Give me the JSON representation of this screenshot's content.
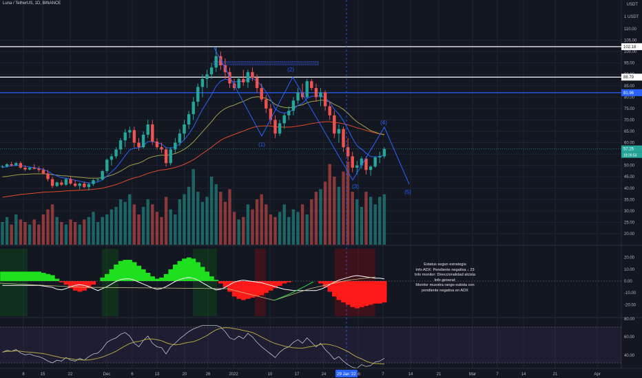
{
  "header": {
    "symbol": "Luna / TetherUS, 1D, BINANCE",
    "currency": "USDT"
  },
  "colors": {
    "background": "#131722",
    "up": "#26a69a",
    "down": "#ef5350",
    "ema_fast": "#2962ff",
    "ema_mid": "#a0a04a",
    "ema_slow": "#e04a2a",
    "level_blue": "#2962ff",
    "wave": "#2962ff"
  },
  "price_scale": {
    "ticks": [
      "105.00",
      "100.00",
      "95.00",
      "90.00",
      "85.00",
      "80.00",
      "75.00",
      "70.00",
      "65.00",
      "60.00",
      "55.00",
      "50.00",
      "45.00",
      "40.00",
      "35.00",
      "30.00",
      "25.00",
      "20.00"
    ],
    "top_label": "1 USDT",
    "top_mid_label": "110.00",
    "tags": [
      {
        "text": "102.18",
        "style": "white"
      },
      {
        "text": "88.79",
        "style": "white"
      },
      {
        "text": "81.96",
        "style": "blue"
      },
      {
        "text": "57.25",
        "style": "teal"
      },
      {
        "text": "19:26:53",
        "style": "teal-small"
      }
    ]
  },
  "adx_scale": {
    "ticks": [
      "20.00",
      "10.00",
      "0.00",
      "-10.00",
      "-20.00"
    ]
  },
  "rsi_scale": {
    "ticks": [
      "80.00",
      "60.00",
      "40.00"
    ]
  },
  "time_axis": {
    "ticks": [
      "8",
      "15",
      "22",
      "Dec",
      "6",
      "13",
      "20",
      "26",
      "2022",
      "10",
      "17",
      "24",
      "eb",
      "7",
      "14",
      "21",
      "Mar",
      "7",
      "14",
      "21",
      "Apr"
    ],
    "cursor_label": "29 Jan '22"
  },
  "wave_labels": [
    "(1)",
    "(2)",
    "(3)",
    "(4)",
    "(5)"
  ],
  "info_box": {
    "lines": [
      "Estatus segun estrategia",
      "Info ADX: Pendiente negativa ↓ 23",
      "Info monitor: Direccionalidad alcista",
      "Info general:",
      "Monitor muestra rango-subida con",
      "pendiente negativa en ADX"
    ]
  },
  "chart_data": {
    "type": "candlestick",
    "title": "Luna / TetherUS, 1D, BINANCE",
    "ylim": [
      18,
      112
    ],
    "levels": [
      102.18,
      88.79,
      81.96
    ],
    "last_price": 57.25,
    "candles": [
      [
        49.5,
        50.2,
        48.8,
        49.6
      ],
      [
        49.6,
        51,
        49,
        50.5
      ],
      [
        50.5,
        51.6,
        49.5,
        50
      ],
      [
        50,
        51.5,
        49.8,
        51
      ],
      [
        51,
        51.8,
        48.5,
        49
      ],
      [
        49,
        50,
        47.5,
        48.2
      ],
      [
        48.2,
        49.5,
        47.8,
        49
      ],
      [
        49,
        50.5,
        48.2,
        48.5
      ],
      [
        48.5,
        49.6,
        47,
        48
      ],
      [
        48,
        49,
        46,
        46.5
      ],
      [
        46.5,
        48,
        43,
        44
      ],
      [
        44,
        45,
        40,
        41
      ],
      [
        41,
        43,
        40.5,
        42.5
      ],
      [
        42.5,
        43.5,
        41,
        41.5
      ],
      [
        41.5,
        44.5,
        41,
        44
      ],
      [
        44,
        45,
        41.5,
        42
      ],
      [
        42,
        43.5,
        40.5,
        41
      ],
      [
        41,
        42.5,
        39.5,
        42
      ],
      [
        42,
        43,
        40,
        40.5
      ],
      [
        40.5,
        42.5,
        39,
        41.8
      ],
      [
        41.8,
        44,
        41,
        43.5
      ],
      [
        43.5,
        44.5,
        42.8,
        43.8
      ],
      [
        43.8,
        48,
        43.5,
        47.5
      ],
      [
        47.5,
        53,
        46.5,
        52.5
      ],
      [
        52.5,
        55,
        50,
        54
      ],
      [
        54,
        58,
        53,
        57
      ],
      [
        57,
        62,
        55,
        61
      ],
      [
        61,
        66,
        58,
        64.5
      ],
      [
        64.5,
        67,
        62,
        65.5
      ],
      [
        65.5,
        67,
        58,
        60
      ],
      [
        60,
        62,
        56.5,
        58
      ],
      [
        58,
        65,
        57.5,
        63.5
      ],
      [
        63.5,
        70,
        62,
        68
      ],
      [
        68,
        70,
        59,
        60.5
      ],
      [
        60.5,
        62,
        57,
        58
      ],
      [
        58,
        60,
        55.5,
        57
      ],
      [
        57,
        58,
        49.5,
        51
      ],
      [
        51,
        58,
        50,
        57
      ],
      [
        57,
        62,
        55.5,
        60
      ],
      [
        60,
        66,
        58.5,
        64
      ],
      [
        64,
        70,
        61.5,
        68
      ],
      [
        68,
        74,
        66,
        72.5
      ],
      [
        72.5,
        80,
        70,
        78
      ],
      [
        78,
        86,
        76,
        84.5
      ],
      [
        84.5,
        90,
        80,
        88
      ],
      [
        88,
        92,
        84,
        90
      ],
      [
        90,
        95,
        88,
        93
      ],
      [
        93,
        102,
        91,
        98
      ],
      [
        98,
        100,
        92,
        94
      ],
      [
        94,
        97,
        88,
        91
      ],
      [
        91,
        93,
        84,
        86
      ],
      [
        86,
        88,
        83,
        84
      ],
      [
        84,
        89,
        83.5,
        88
      ],
      [
        88,
        92,
        85,
        86.5
      ],
      [
        86.5,
        92,
        84,
        91
      ],
      [
        91,
        93,
        87,
        88.5
      ],
      [
        88.5,
        90,
        82,
        84
      ],
      [
        84,
        86,
        78,
        79
      ],
      [
        79,
        81,
        73,
        75
      ],
      [
        75,
        77,
        68,
        70
      ],
      [
        70,
        72,
        62,
        64
      ],
      [
        64,
        70,
        63,
        68.5
      ],
      [
        68.5,
        73,
        66,
        72
      ],
      [
        72,
        76,
        70,
        74
      ],
      [
        74,
        80,
        72,
        78.5
      ],
      [
        78.5,
        84,
        77,
        82
      ],
      [
        82,
        86,
        79,
        80
      ],
      [
        80,
        88,
        79.5,
        87
      ],
      [
        87,
        88,
        83,
        84
      ],
      [
        84,
        86,
        78,
        80
      ],
      [
        80,
        84,
        76,
        82
      ],
      [
        82,
        83,
        74,
        76
      ],
      [
        76,
        78,
        70,
        72
      ],
      [
        72,
        74,
        62,
        64
      ],
      [
        64,
        68,
        60,
        66
      ],
      [
        66,
        67,
        56,
        58
      ],
      [
        58,
        62,
        52,
        54
      ],
      [
        54,
        56,
        47,
        49
      ],
      [
        49,
        52,
        46,
        50
      ],
      [
        50,
        54,
        48.5,
        53
      ],
      [
        53,
        54,
        46,
        48
      ],
      [
        48,
        50,
        45.5,
        49.5
      ],
      [
        49.5,
        54,
        49,
        53.5
      ],
      [
        53.5,
        56,
        51,
        54
      ],
      [
        54,
        58,
        53,
        57.25
      ]
    ],
    "volume_ylim": [
      0,
      60
    ],
    "volumes": [
      9,
      11,
      8,
      12,
      10,
      9,
      8,
      10,
      8,
      12,
      14,
      16,
      11,
      9,
      8,
      10,
      9,
      8,
      10,
      11,
      13,
      9,
      11,
      12,
      14,
      15,
      18,
      17,
      20,
      16,
      12,
      15,
      18,
      16,
      13,
      11,
      19,
      14,
      12,
      18,
      20,
      23,
      30,
      21,
      17,
      19,
      27,
      24,
      21,
      17,
      22,
      13,
      10,
      11,
      16,
      14,
      18,
      20,
      16,
      12,
      11,
      13,
      16,
      11,
      14,
      13,
      16,
      12,
      18,
      21,
      22,
      25,
      32,
      27,
      23,
      29,
      33,
      21,
      18,
      15,
      21,
      19,
      16,
      19,
      20
    ],
    "ema_fast": [
      49,
      49.5,
      49.8,
      50,
      50,
      49.6,
      49.3,
      49,
      48.7,
      48.2,
      47.4,
      46.2,
      45.4,
      44.6,
      44.4,
      44,
      43.4,
      43.1,
      42.6,
      42.3,
      42.5,
      42.7,
      43.6,
      45.4,
      47.1,
      49,
      51.5,
      54.3,
      56.8,
      57.6,
      57.7,
      58.7,
      60.5,
      60.5,
      60,
      59.4,
      57.8,
      57.6,
      58.1,
      59.4,
      61.3,
      63.8,
      66.8,
      70.8,
      74.6,
      77.8,
      81,
      84.8,
      87,
      87.9,
      87.4,
      86.6,
      87,
      86.9,
      87.8,
      88.2,
      87.1,
      85,
      82.3,
      79,
      74.9,
      73.4,
      73,
      73.3,
      74.6,
      76.4,
      77.3,
      79.4,
      80.4,
      80.4,
      80.8,
      79.7,
      77.8,
      74.6,
      72.6,
      69.6,
      66,
      61.9,
      58.6,
      57.1,
      55.4,
      53.9,
      53.8,
      53.9,
      54.7
    ],
    "ema_mid": [
      45,
      45.2,
      45.5,
      45.8,
      46,
      46.1,
      46.2,
      46.3,
      46.3,
      46.3,
      46.2,
      45.9,
      45.7,
      45.5,
      45.4,
      45.2,
      45,
      44.8,
      44.6,
      44.4,
      44.4,
      44.4,
      44.6,
      45.1,
      45.7,
      46.5,
      47.5,
      48.7,
      49.9,
      50.5,
      51,
      51.9,
      53.1,
      53.8,
      54.2,
      54.5,
      54.4,
      54.7,
      55.2,
      56,
      57.1,
      58.5,
      60.3,
      62.5,
      64.8,
      67,
      69.2,
      71.7,
      73.6,
      75,
      75.9,
      76.5,
      77.4,
      78.1,
      79.1,
      79.9,
      80.2,
      80,
      79.4,
      78.4,
      76.8,
      76,
      75.5,
      75.3,
      75.6,
      76.2,
      76.6,
      77.5,
      78.1,
      78.3,
      78.7,
      78.5,
      78,
      76.8,
      75.9,
      74.6,
      72.9,
      70.9,
      69.1,
      67.9,
      66.6,
      65.3,
      64.6,
      63.9,
      63.6
    ],
    "ema_slow": [
      36,
      36.3,
      36.6,
      36.9,
      37.2,
      37.4,
      37.6,
      37.8,
      38,
      38.2,
      38.3,
      38.4,
      38.5,
      38.6,
      38.8,
      38.9,
      39,
      39.1,
      39.2,
      39.3,
      39.5,
      39.7,
      40,
      40.5,
      41,
      41.6,
      42.3,
      43.1,
      43.9,
      44.5,
      45,
      45.7,
      46.5,
      47.1,
      47.6,
      48,
      48.2,
      48.6,
      49.1,
      49.7,
      50.5,
      51.4,
      52.5,
      53.8,
      55.2,
      56.6,
      58,
      59.6,
      61,
      62.1,
      62.9,
      63.6,
      64.4,
      65.1,
      65.9,
      66.6,
      67.1,
      67.3,
      67.4,
      67.3,
      67,
      66.9,
      66.8,
      66.8,
      67,
      67.3,
      67.6,
      68,
      68.4,
      68.7,
      69,
      69.2,
      69.2,
      68.9,
      68.7,
      68.3,
      67.8,
      67.2,
      66.5,
      66,
      65.4,
      64.8,
      64.3,
      63.8,
      63.4
    ]
  }
}
